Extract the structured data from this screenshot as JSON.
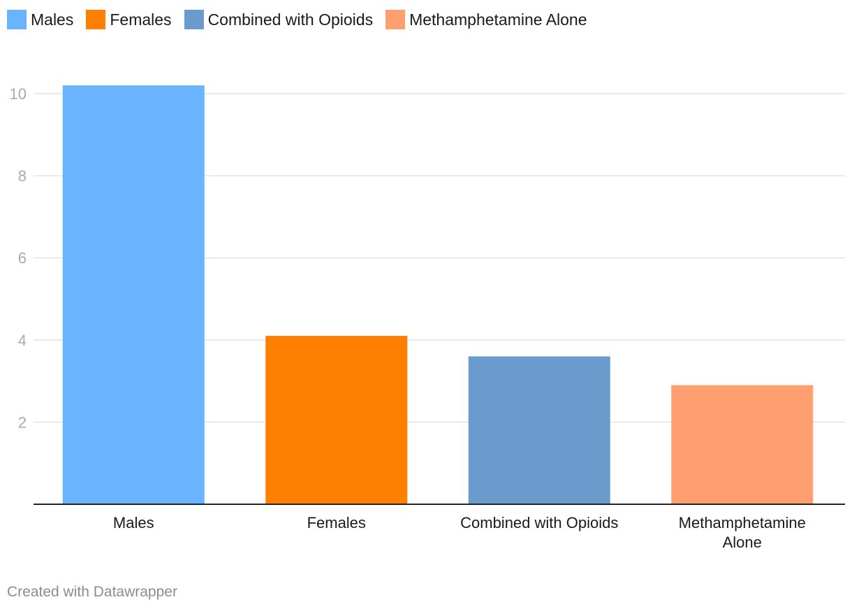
{
  "legend": {
    "items": [
      {
        "label": "Males",
        "color": "#69b3ff"
      },
      {
        "label": "Females",
        "color": "#ff7f00"
      },
      {
        "label": "Combined with Opioids",
        "color": "#699bcc"
      },
      {
        "label": "Methamphetamine Alone",
        "color": "#ff9e6e"
      }
    ]
  },
  "footer": {
    "credit": "Created with Datawrapper"
  },
  "chart_data": {
    "type": "bar",
    "title": "",
    "xlabel": "",
    "ylabel": "",
    "categories": [
      "Males",
      "Females",
      "Combined with Opioids",
      "Methamphetamine Alone"
    ],
    "category_lines": [
      [
        "Males"
      ],
      [
        "Females"
      ],
      [
        "Combined with Opioids"
      ],
      [
        "Methamphetamine",
        "Alone"
      ]
    ],
    "values": [
      10.2,
      4.1,
      3.6,
      2.9
    ],
    "colors": [
      "#69b3ff",
      "#ff7f00",
      "#699bcc",
      "#ff9e6e"
    ],
    "ylim": [
      0,
      10.2
    ],
    "yticks": [
      2,
      4,
      6,
      8,
      10
    ],
    "grid": true,
    "legend_position": "top-left"
  }
}
